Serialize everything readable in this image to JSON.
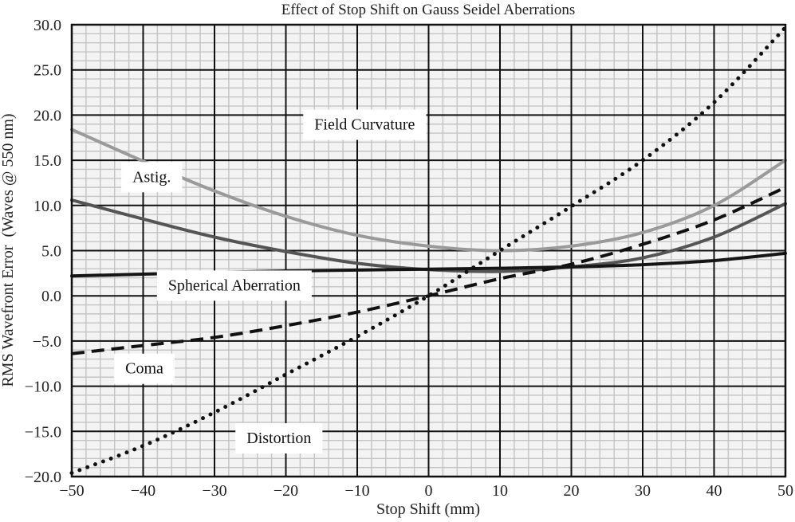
{
  "chart_data": {
    "type": "line",
    "title": "Effect of Stop Shift on Gauss Seidel Aberrations",
    "xlabel": "Stop Shift (mm)",
    "ylabel": "RMS Wavefront Error  (Waves @ 550 nm)",
    "xlim": [
      -50,
      50
    ],
    "ylim": [
      -20,
      30
    ],
    "x_ticks": [
      -50,
      -40,
      -30,
      -20,
      -10,
      0,
      10,
      20,
      30,
      40,
      50
    ],
    "x_tick_labels": [
      "−50",
      "−40",
      "−30",
      "−20",
      "−10",
      "0",
      "10",
      "20",
      "30",
      "40",
      "50"
    ],
    "y_ticks": [
      -20,
      -15,
      -10,
      -5,
      0,
      5,
      10,
      15,
      20,
      25,
      30
    ],
    "y_tick_labels": [
      "−20.0",
      "−15.0",
      "−10.0",
      "−5.0",
      "0.0",
      "5.0",
      "10.0",
      "15.0",
      "20.0",
      "25.0",
      "30.0"
    ],
    "grid": true,
    "legend": "none (inline labels)",
    "x": [
      -50,
      -40,
      -30,
      -20,
      -10,
      0,
      10,
      20,
      30,
      40,
      50
    ],
    "series": [
      {
        "name": "Field Curvature",
        "style": "solid",
        "color": "#9a9a9a",
        "values": [
          18.4,
          14.9,
          11.6,
          8.8,
          6.7,
          5.5,
          5.0,
          5.5,
          7.0,
          10.0,
          15.0
        ]
      },
      {
        "name": "Astig.",
        "style": "solid",
        "color": "#555555",
        "values": [
          10.6,
          8.5,
          6.5,
          4.9,
          3.6,
          2.9,
          2.7,
          3.2,
          4.2,
          6.5,
          10.2
        ]
      },
      {
        "name": "Spherical Aberration",
        "style": "solid",
        "color": "#151515",
        "values": [
          2.2,
          2.4,
          2.6,
          2.75,
          2.85,
          2.95,
          3.05,
          3.2,
          3.45,
          3.9,
          4.7
        ]
      },
      {
        "name": "Coma",
        "style": "dashed",
        "color": "#111111",
        "values": [
          -6.4,
          -5.5,
          -4.6,
          -3.3,
          -1.8,
          0.0,
          1.9,
          3.5,
          5.7,
          8.4,
          12.0
        ]
      },
      {
        "name": "Distortion",
        "style": "dotted",
        "color": "#111111",
        "values": [
          -19.6,
          -16.6,
          -12.9,
          -8.7,
          -4.5,
          0.0,
          5.0,
          9.9,
          15.0,
          21.4,
          29.7
        ]
      }
    ],
    "annotations": [
      {
        "text": "Field Curvature",
        "x": -16,
        "y": 18.4
      },
      {
        "text": "Astig.",
        "x": -41.5,
        "y": 12.6
      },
      {
        "text": "Spherical Aberration",
        "x": -36.5,
        "y": 0.6
      },
      {
        "text": "Coma",
        "x": -42.5,
        "y": -8.6
      },
      {
        "text": "Distortion",
        "x": -25.5,
        "y": -16.3
      }
    ]
  }
}
